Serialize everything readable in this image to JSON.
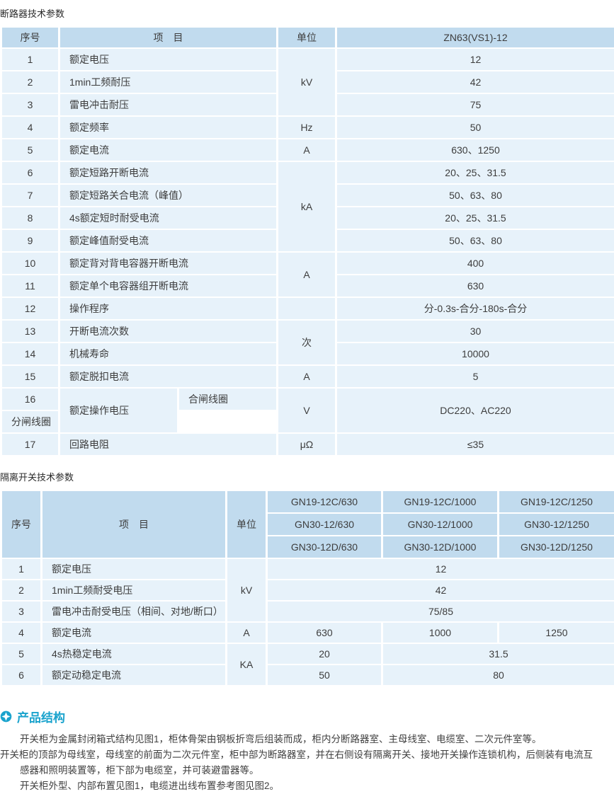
{
  "colors": {
    "header_bg": "#c1dbee",
    "cell_bg": "#e7f2fa",
    "accent": "#1aa3cd",
    "text": "#3d3d3d"
  },
  "table1": {
    "title": "断路器技术参数",
    "headers": {
      "no": "序号",
      "item": "项　目",
      "unit": "单位",
      "model": "ZN63(VS1)-12"
    },
    "rows": [
      {
        "no": "1",
        "item": "额定电压",
        "unit": "kV",
        "value": "12"
      },
      {
        "no": "2",
        "item": "1min工频耐压",
        "value": "42"
      },
      {
        "no": "3",
        "item": "雷电冲击耐压",
        "value": "75"
      },
      {
        "no": "4",
        "item": "额定频率",
        "unit": "Hz",
        "value": "50"
      },
      {
        "no": "5",
        "item": "额定电流",
        "unit": "A",
        "value": "630、1250"
      },
      {
        "no": "6",
        "item": "额定短路开断电流",
        "unit": "kA",
        "value": "20、25、31.5"
      },
      {
        "no": "7",
        "item": "额定短路关合电流（峰值）",
        "value": "50、63、80"
      },
      {
        "no": "8",
        "item": "4s额定短时耐受电流",
        "value": "20、25、31.5"
      },
      {
        "no": "9",
        "item": "额定峰值耐受电流",
        "value": "50、63、80"
      },
      {
        "no": "10",
        "item": "额定背对背电容器开断电流",
        "unit": "A",
        "value": "400"
      },
      {
        "no": "11",
        "item": "额定单个电容器组开断电流",
        "value": "630"
      },
      {
        "no": "12",
        "item": "操作程序",
        "unit": "",
        "value": "分-0.3s-合分-180s-合分"
      },
      {
        "no": "13",
        "item": "开断电流次数",
        "unit": "次",
        "value": "30"
      },
      {
        "no": "14",
        "item": "机械寿命",
        "value": "10000"
      },
      {
        "no": "15",
        "item": "额定脱扣电流",
        "unit": "A",
        "value": "5"
      },
      {
        "no": "16",
        "item": "额定操作电压",
        "sub1": "合闸线圈",
        "sub2": "分闸线圈",
        "unit": "V",
        "value": "DC220、AC220"
      },
      {
        "no": "17",
        "item": "回路电阻",
        "unit": "μΩ",
        "value": "≤35"
      }
    ]
  },
  "table2": {
    "title": "隔离开关技术参数",
    "headers": {
      "no": "序号",
      "item": "项　目",
      "unit": "单位"
    },
    "models": [
      [
        "GN19-12C/630",
        "GN19-12C/1000",
        "GN19-12C/1250"
      ],
      [
        "GN30-12/630",
        "GN30-12/1000",
        "GN30-12/1250"
      ],
      [
        "GN30-12D/630",
        "GN30-12D/1000",
        "GN30-12D/1250"
      ]
    ],
    "rows": [
      {
        "no": "1",
        "item": "额定电压",
        "unit": "kV",
        "values": [
          "12"
        ]
      },
      {
        "no": "2",
        "item": "1min工频耐受电压",
        "values": [
          "42"
        ]
      },
      {
        "no": "3",
        "item": "雷电冲击耐受电压（相间、对地/断口）",
        "values": [
          "75/85"
        ]
      },
      {
        "no": "4",
        "item": "额定电流",
        "unit": "A",
        "values": [
          "630",
          "1000",
          "1250"
        ]
      },
      {
        "no": "5",
        "item": "4s热稳定电流",
        "unit": "KA",
        "values": [
          "20",
          "31.5"
        ]
      },
      {
        "no": "6",
        "item": "额定动稳定电流",
        "values": [
          "50",
          "80"
        ]
      }
    ]
  },
  "product_structure": {
    "heading": "产品结构",
    "lines": [
      {
        "text": "开关柜为金属封闭箱式结构见图1，柜体骨架由钢板折弯后组装而成，柜内分断路器室、主母线室、电缆室、二次元件室等。",
        "indent": true
      },
      {
        "text": "开关柜的顶部为母线室，母线室的前面为二次元件室，柜中部为断路器室，并在右侧设有隔离开关、接地开关操作连锁机构，后侧装有电流互",
        "indent": false
      },
      {
        "text": "感器和照明装置等，柜下部为电缆室，并可装避雷器等。",
        "indent": true
      },
      {
        "text": "开关柜外型、内部布置见图1，电缆进出线布置参考图见图2。",
        "indent": true
      }
    ]
  }
}
